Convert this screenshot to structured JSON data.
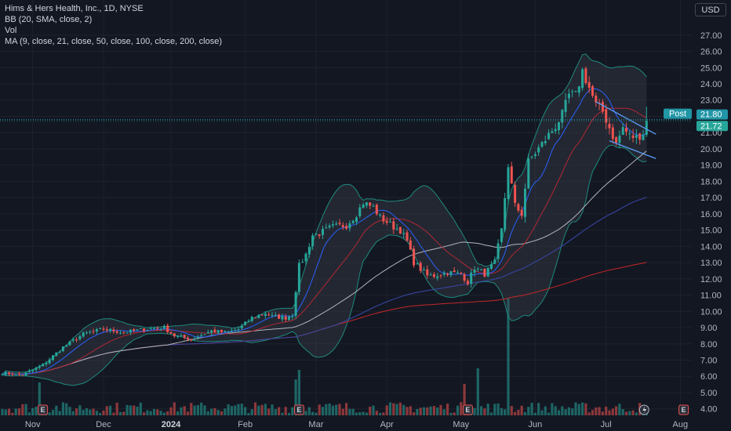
{
  "legend": {
    "title": "Hims & Hers Health, Inc., 1D, NYSE",
    "bb": "BB (20, SMA, close, 2)",
    "vol": "Vol",
    "ma": "MA (9, close, 21, close, 50, close, 100, close, 200, close)"
  },
  "currency": "USD",
  "post_label": "Post",
  "post_price": "21.80",
  "last_price": "21.72",
  "earnings_marker": "E",
  "colors": {
    "background": "#131722",
    "up": "#26a69a",
    "down": "#ef5350",
    "bb_fill": "#434651",
    "bb_line": "#1d8b7e",
    "ma9": "#2962ff",
    "ma21": "#b22833",
    "ma50": "#b2b5be",
    "ma100": "#3949ab",
    "ma200": "#c62828",
    "trendline": "#5b9cf6",
    "post_tag": "#2196a6"
  },
  "chart_data": {
    "type": "candlestick",
    "y_ticks": [
      "4.00",
      "5.00",
      "6.00",
      "7.00",
      "8.00",
      "9.00",
      "10.00",
      "11.00",
      "12.00",
      "13.00",
      "14.00",
      "15.00",
      "16.00",
      "17.00",
      "18.00",
      "19.00",
      "20.00",
      "21.00",
      "22.00",
      "23.00",
      "24.00",
      "25.00",
      "26.00",
      "27.00"
    ],
    "ylim": [
      3.6,
      28.1
    ],
    "x_labels": [
      {
        "label": "Nov",
        "index": 9,
        "bold": false
      },
      {
        "label": "Dec",
        "index": 30,
        "bold": false
      },
      {
        "label": "2024",
        "index": 50,
        "bold": true
      },
      {
        "label": "Feb",
        "index": 72,
        "bold": false
      },
      {
        "label": "Mar",
        "index": 93,
        "bold": false
      },
      {
        "label": "Apr",
        "index": 114,
        "bold": false
      },
      {
        "label": "May",
        "index": 136,
        "bold": false
      },
      {
        "label": "Jun",
        "index": 158,
        "bold": false
      },
      {
        "label": "Jul",
        "index": 179,
        "bold": false
      },
      {
        "label": "Aug",
        "index": 201,
        "bold": false
      }
    ],
    "earnings_indices": [
      12,
      88,
      138,
      202
    ],
    "anchors": [
      [
        0,
        6.2
      ],
      [
        6,
        6.1
      ],
      [
        12,
        6.7
      ],
      [
        18,
        7.8
      ],
      [
        24,
        8.6
      ],
      [
        30,
        8.9
      ],
      [
        36,
        8.7
      ],
      [
        42,
        8.9
      ],
      [
        48,
        9.0
      ],
      [
        51,
        8.5
      ],
      [
        56,
        8.3
      ],
      [
        62,
        8.8
      ],
      [
        66,
        8.7
      ],
      [
        70,
        8.9
      ],
      [
        74,
        9.6
      ],
      [
        78,
        9.9
      ],
      [
        80,
        9.7
      ],
      [
        84,
        9.6
      ],
      [
        86,
        9.8
      ],
      [
        88,
        12.8
      ],
      [
        90,
        13.5
      ],
      [
        92,
        14.7
      ],
      [
        94,
        14.8
      ],
      [
        98,
        15.2
      ],
      [
        102,
        15.3
      ],
      [
        105,
        16.0
      ],
      [
        107,
        16.7
      ],
      [
        110,
        16.4
      ],
      [
        112,
        15.8
      ],
      [
        116,
        15.2
      ],
      [
        118,
        15.0
      ],
      [
        120,
        14.3
      ],
      [
        122,
        13.0
      ],
      [
        126,
        12.2
      ],
      [
        128,
        12.2
      ],
      [
        132,
        12.4
      ],
      [
        136,
        12.3
      ],
      [
        138,
        11.8
      ],
      [
        140,
        12.7
      ],
      [
        143,
        12.3
      ],
      [
        146,
        13.0
      ],
      [
        148,
        15.0
      ],
      [
        150,
        19.0
      ],
      [
        152,
        16.5
      ],
      [
        154,
        16.0
      ],
      [
        156,
        19.2
      ],
      [
        160,
        20.3
      ],
      [
        164,
        21.4
      ],
      [
        166,
        22.1
      ],
      [
        168,
        23.3
      ],
      [
        170,
        23.3
      ],
      [
        172,
        24.8
      ],
      [
        173,
        24.3
      ],
      [
        176,
        22.7
      ],
      [
        178,
        22.3
      ],
      [
        180,
        21.3
      ],
      [
        182,
        20.3
      ],
      [
        184,
        21.3
      ],
      [
        186,
        20.8
      ],
      [
        188,
        20.7
      ],
      [
        190,
        21.0
      ],
      [
        191,
        21.72
      ]
    ]
  }
}
